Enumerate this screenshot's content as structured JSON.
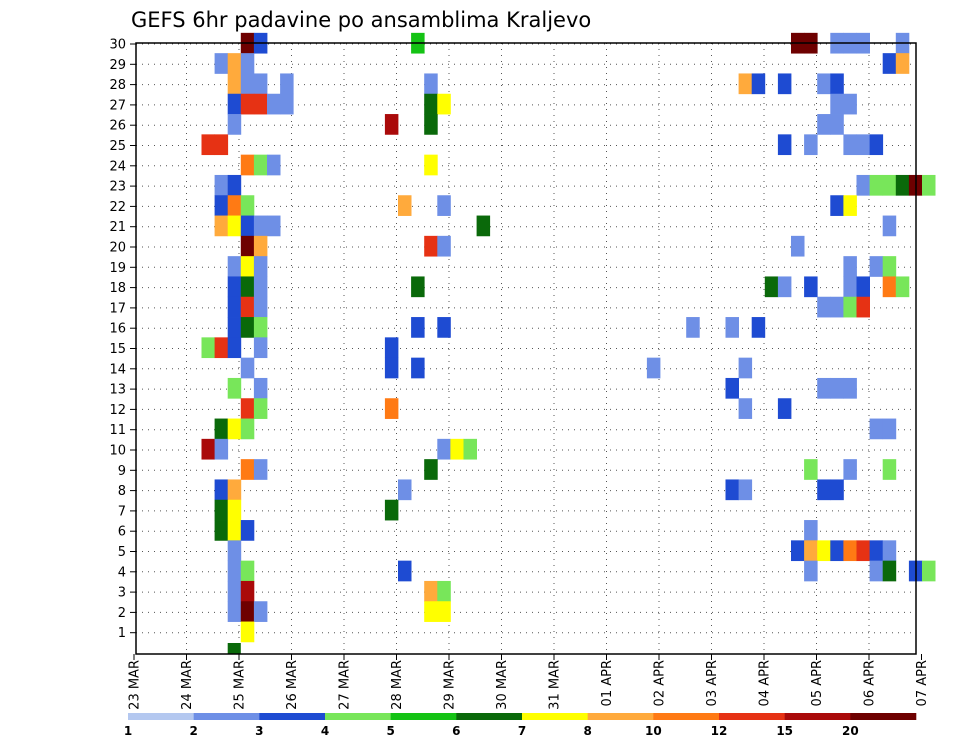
{
  "chart_data": {
    "type": "heatmap",
    "title": "GEFS 6hr padavine po ansamblima Kraljevo",
    "y_categories": [
      "30",
      "29",
      "28",
      "27",
      "26",
      "25",
      "24",
      "23",
      "22",
      "21",
      "20",
      "19",
      "18",
      "17",
      "16",
      "15",
      "14",
      "13",
      "12",
      "11",
      "10",
      "9",
      "8",
      "7",
      "6",
      "5",
      "4",
      "3",
      "2",
      "1"
    ],
    "x_tick_labels": [
      "23 MAR",
      "24 MAR",
      "25 MAR",
      "26 MAR",
      "27 MAR",
      "28 MAR",
      "29 MAR",
      "30 MAR",
      "31 MAR",
      "01 APR",
      "02 APR",
      "03 APR",
      "04 APR",
      "05 APR",
      "06 APR",
      "07 APR"
    ],
    "x_steps_per_day": 4,
    "grid": "dotted",
    "colorbar": {
      "labels": [
        "1",
        "2",
        "3",
        "4",
        "5",
        "6",
        "7",
        "8",
        "10",
        "12",
        "15",
        "20"
      ],
      "colors": [
        "#b4c8f0",
        "#6e8fe6",
        "#1e4bd2",
        "#78e65a",
        "#14c314",
        "#0a690a",
        "#ffff00",
        "#ffaa3c",
        "#ff7a14",
        "#e63214",
        "#aa0a0a",
        "#6e0000"
      ]
    },
    "cells": [
      {
        "member": 30,
        "step": 8,
        "level": 11
      },
      {
        "member": 30,
        "step": 9,
        "level": 2
      },
      {
        "member": 30,
        "step": 21,
        "level": 4
      },
      {
        "member": 30,
        "step": 50,
        "level": 11
      },
      {
        "member": 30,
        "step": 51,
        "level": 11
      },
      {
        "member": 30,
        "step": 53,
        "level": 1
      },
      {
        "member": 30,
        "step": 54,
        "level": 1
      },
      {
        "member": 30,
        "step": 55,
        "level": 1
      },
      {
        "member": 30,
        "step": 58,
        "level": 1
      },
      {
        "member": 29,
        "step": 6,
        "level": 1
      },
      {
        "member": 29,
        "step": 7,
        "level": 7
      },
      {
        "member": 29,
        "step": 8,
        "level": 1
      },
      {
        "member": 29,
        "step": 57,
        "level": 2
      },
      {
        "member": 29,
        "step": 58,
        "level": 7
      },
      {
        "member": 28,
        "step": 7,
        "level": 7
      },
      {
        "member": 28,
        "step": 8,
        "level": 1
      },
      {
        "member": 28,
        "step": 9,
        "level": 1
      },
      {
        "member": 28,
        "step": 11,
        "level": 1
      },
      {
        "member": 28,
        "step": 22,
        "level": 1
      },
      {
        "member": 28,
        "step": 46,
        "level": 7
      },
      {
        "member": 28,
        "step": 47,
        "level": 2
      },
      {
        "member": 28,
        "step": 49,
        "level": 2
      },
      {
        "member": 28,
        "step": 52,
        "level": 1
      },
      {
        "member": 28,
        "step": 53,
        "level": 2
      },
      {
        "member": 27,
        "step": 7,
        "level": 2
      },
      {
        "member": 27,
        "step": 8,
        "level": 9
      },
      {
        "member": 27,
        "step": 9,
        "level": 9
      },
      {
        "member": 27,
        "step": 10,
        "level": 1
      },
      {
        "member": 27,
        "step": 11,
        "level": 1
      },
      {
        "member": 27,
        "step": 22,
        "level": 5
      },
      {
        "member": 27,
        "step": 23,
        "level": 6
      },
      {
        "member": 27,
        "step": 53,
        "level": 1
      },
      {
        "member": 27,
        "step": 54,
        "level": 1
      },
      {
        "member": 26,
        "step": 7,
        "level": 1
      },
      {
        "member": 26,
        "step": 19,
        "level": 10
      },
      {
        "member": 26,
        "step": 22,
        "level": 5
      },
      {
        "member": 26,
        "step": 52,
        "level": 1
      },
      {
        "member": 26,
        "step": 53,
        "level": 1
      },
      {
        "member": 25,
        "step": 5,
        "level": 9
      },
      {
        "member": 25,
        "step": 6,
        "level": 9
      },
      {
        "member": 25,
        "step": 49,
        "level": 2
      },
      {
        "member": 25,
        "step": 51,
        "level": 1
      },
      {
        "member": 25,
        "step": 54,
        "level": 1
      },
      {
        "member": 25,
        "step": 55,
        "level": 1
      },
      {
        "member": 25,
        "step": 56,
        "level": 2
      },
      {
        "member": 24,
        "step": 8,
        "level": 8
      },
      {
        "member": 24,
        "step": 9,
        "level": 3
      },
      {
        "member": 24,
        "step": 10,
        "level": 1
      },
      {
        "member": 24,
        "step": 22,
        "level": 6
      },
      {
        "member": 23,
        "step": 6,
        "level": 1
      },
      {
        "member": 23,
        "step": 7,
        "level": 2
      },
      {
        "member": 23,
        "step": 55,
        "level": 1
      },
      {
        "member": 23,
        "step": 56,
        "level": 3
      },
      {
        "member": 23,
        "step": 57,
        "level": 3
      },
      {
        "member": 23,
        "step": 58,
        "level": 5
      },
      {
        "member": 23,
        "step": 59,
        "level": 11
      },
      {
        "member": 23,
        "step": 60,
        "level": 3
      },
      {
        "member": 22,
        "step": 6,
        "level": 2
      },
      {
        "member": 22,
        "step": 7,
        "level": 8
      },
      {
        "member": 22,
        "step": 8,
        "level": 3
      },
      {
        "member": 22,
        "step": 20,
        "level": 7
      },
      {
        "member": 22,
        "step": 23,
        "level": 1
      },
      {
        "member": 22,
        "step": 53,
        "level": 2
      },
      {
        "member": 22,
        "step": 54,
        "level": 6
      },
      {
        "member": 21,
        "step": 6,
        "level": 7
      },
      {
        "member": 21,
        "step": 7,
        "level": 6
      },
      {
        "member": 21,
        "step": 8,
        "level": 2
      },
      {
        "member": 21,
        "step": 9,
        "level": 1
      },
      {
        "member": 21,
        "step": 10,
        "level": 1
      },
      {
        "member": 21,
        "step": 26,
        "level": 5
      },
      {
        "member": 21,
        "step": 57,
        "level": 1
      },
      {
        "member": 20,
        "step": 8,
        "level": 11
      },
      {
        "member": 20,
        "step": 9,
        "level": 7
      },
      {
        "member": 20,
        "step": 22,
        "level": 9
      },
      {
        "member": 20,
        "step": 23,
        "level": 1
      },
      {
        "member": 20,
        "step": 50,
        "level": 1
      },
      {
        "member": 19,
        "step": 7,
        "level": 1
      },
      {
        "member": 19,
        "step": 8,
        "level": 6
      },
      {
        "member": 19,
        "step": 9,
        "level": 1
      },
      {
        "member": 19,
        "step": 54,
        "level": 1
      },
      {
        "member": 19,
        "step": 56,
        "level": 1
      },
      {
        "member": 19,
        "step": 57,
        "level": 3
      },
      {
        "member": 18,
        "step": 7,
        "level": 2
      },
      {
        "member": 18,
        "step": 8,
        "level": 5
      },
      {
        "member": 18,
        "step": 9,
        "level": 1
      },
      {
        "member": 18,
        "step": 21,
        "level": 5
      },
      {
        "member": 18,
        "step": 48,
        "level": 5
      },
      {
        "member": 18,
        "step": 49,
        "level": 1
      },
      {
        "member": 18,
        "step": 51,
        "level": 2
      },
      {
        "member": 18,
        "step": 54,
        "level": 1
      },
      {
        "member": 18,
        "step": 55,
        "level": 2
      },
      {
        "member": 18,
        "step": 57,
        "level": 8
      },
      {
        "member": 18,
        "step": 58,
        "level": 3
      },
      {
        "member": 17,
        "step": 7,
        "level": 2
      },
      {
        "member": 17,
        "step": 8,
        "level": 9
      },
      {
        "member": 17,
        "step": 9,
        "level": 1
      },
      {
        "member": 17,
        "step": 52,
        "level": 1
      },
      {
        "member": 17,
        "step": 53,
        "level": 1
      },
      {
        "member": 17,
        "step": 54,
        "level": 3
      },
      {
        "member": 17,
        "step": 55,
        "level": 9
      },
      {
        "member": 16,
        "step": 7,
        "level": 2
      },
      {
        "member": 16,
        "step": 8,
        "level": 5
      },
      {
        "member": 16,
        "step": 9,
        "level": 3
      },
      {
        "member": 16,
        "step": 21,
        "level": 2
      },
      {
        "member": 16,
        "step": 23,
        "level": 2
      },
      {
        "member": 16,
        "step": 42,
        "level": 1
      },
      {
        "member": 16,
        "step": 45,
        "level": 1
      },
      {
        "member": 16,
        "step": 47,
        "level": 2
      },
      {
        "member": 15,
        "step": 5,
        "level": 3
      },
      {
        "member": 15,
        "step": 6,
        "level": 9
      },
      {
        "member": 15,
        "step": 7,
        "level": 2
      },
      {
        "member": 15,
        "step": 9,
        "level": 1
      },
      {
        "member": 15,
        "step": 19,
        "level": 2
      },
      {
        "member": 14,
        "step": 8,
        "level": 1
      },
      {
        "member": 14,
        "step": 19,
        "level": 2
      },
      {
        "member": 14,
        "step": 21,
        "level": 2
      },
      {
        "member": 14,
        "step": 39,
        "level": 1
      },
      {
        "member": 14,
        "step": 46,
        "level": 1
      },
      {
        "member": 13,
        "step": 7,
        "level": 3
      },
      {
        "member": 13,
        "step": 9,
        "level": 1
      },
      {
        "member": 13,
        "step": 45,
        "level": 2
      },
      {
        "member": 13,
        "step": 52,
        "level": 1
      },
      {
        "member": 13,
        "step": 53,
        "level": 1
      },
      {
        "member": 13,
        "step": 54,
        "level": 1
      },
      {
        "member": 12,
        "step": 8,
        "level": 9
      },
      {
        "member": 12,
        "step": 9,
        "level": 3
      },
      {
        "member": 12,
        "step": 19,
        "level": 8
      },
      {
        "member": 12,
        "step": 46,
        "level": 1
      },
      {
        "member": 12,
        "step": 49,
        "level": 2
      },
      {
        "member": 11,
        "step": 6,
        "level": 5
      },
      {
        "member": 11,
        "step": 7,
        "level": 6
      },
      {
        "member": 11,
        "step": 8,
        "level": 3
      },
      {
        "member": 11,
        "step": 56,
        "level": 1
      },
      {
        "member": 11,
        "step": 57,
        "level": 1
      },
      {
        "member": 10,
        "step": 5,
        "level": 10
      },
      {
        "member": 10,
        "step": 6,
        "level": 1
      },
      {
        "member": 10,
        "step": 23,
        "level": 1
      },
      {
        "member": 10,
        "step": 24,
        "level": 6
      },
      {
        "member": 10,
        "step": 25,
        "level": 3
      },
      {
        "member": 9,
        "step": 8,
        "level": 8
      },
      {
        "member": 9,
        "step": 9,
        "level": 1
      },
      {
        "member": 9,
        "step": 22,
        "level": 5
      },
      {
        "member": 9,
        "step": 51,
        "level": 3
      },
      {
        "member": 9,
        "step": 54,
        "level": 1
      },
      {
        "member": 9,
        "step": 57,
        "level": 3
      },
      {
        "member": 8,
        "step": 6,
        "level": 2
      },
      {
        "member": 8,
        "step": 7,
        "level": 7
      },
      {
        "member": 8,
        "step": 20,
        "level": 1
      },
      {
        "member": 8,
        "step": 45,
        "level": 2
      },
      {
        "member": 8,
        "step": 46,
        "level": 1
      },
      {
        "member": 8,
        "step": 52,
        "level": 2
      },
      {
        "member": 8,
        "step": 53,
        "level": 2
      },
      {
        "member": 7,
        "step": 6,
        "level": 5
      },
      {
        "member": 7,
        "step": 7,
        "level": 6
      },
      {
        "member": 7,
        "step": 19,
        "level": 5
      },
      {
        "member": 6,
        "step": 6,
        "level": 5
      },
      {
        "member": 6,
        "step": 7,
        "level": 6
      },
      {
        "member": 6,
        "step": 8,
        "level": 2
      },
      {
        "member": 6,
        "step": 51,
        "level": 1
      },
      {
        "member": 5,
        "step": 7,
        "level": 1
      },
      {
        "member": 5,
        "step": 50,
        "level": 2
      },
      {
        "member": 5,
        "step": 51,
        "level": 7
      },
      {
        "member": 5,
        "step": 52,
        "level": 6
      },
      {
        "member": 5,
        "step": 53,
        "level": 2
      },
      {
        "member": 5,
        "step": 54,
        "level": 8
      },
      {
        "member": 5,
        "step": 55,
        "level": 9
      },
      {
        "member": 5,
        "step": 56,
        "level": 2
      },
      {
        "member": 5,
        "step": 57,
        "level": 1
      },
      {
        "member": 4,
        "step": 7,
        "level": 1
      },
      {
        "member": 4,
        "step": 8,
        "level": 3
      },
      {
        "member": 4,
        "step": 20,
        "level": 2
      },
      {
        "member": 4,
        "step": 51,
        "level": 1
      },
      {
        "member": 4,
        "step": 56,
        "level": 1
      },
      {
        "member": 4,
        "step": 57,
        "level": 5
      },
      {
        "member": 4,
        "step": 59,
        "level": 2
      },
      {
        "member": 4,
        "step": 60,
        "level": 3
      },
      {
        "member": 3,
        "step": 7,
        "level": 1
      },
      {
        "member": 3,
        "step": 8,
        "level": 10
      },
      {
        "member": 3,
        "step": 22,
        "level": 7
      },
      {
        "member": 3,
        "step": 23,
        "level": 3
      },
      {
        "member": 2,
        "step": 7,
        "level": 1
      },
      {
        "member": 2,
        "step": 8,
        "level": 11
      },
      {
        "member": 2,
        "step": 9,
        "level": 1
      },
      {
        "member": 2,
        "step": 22,
        "level": 6
      },
      {
        "member": 2,
        "step": 23,
        "level": 6
      },
      {
        "member": 1,
        "step": 8,
        "level": 6
      }
    ]
  }
}
